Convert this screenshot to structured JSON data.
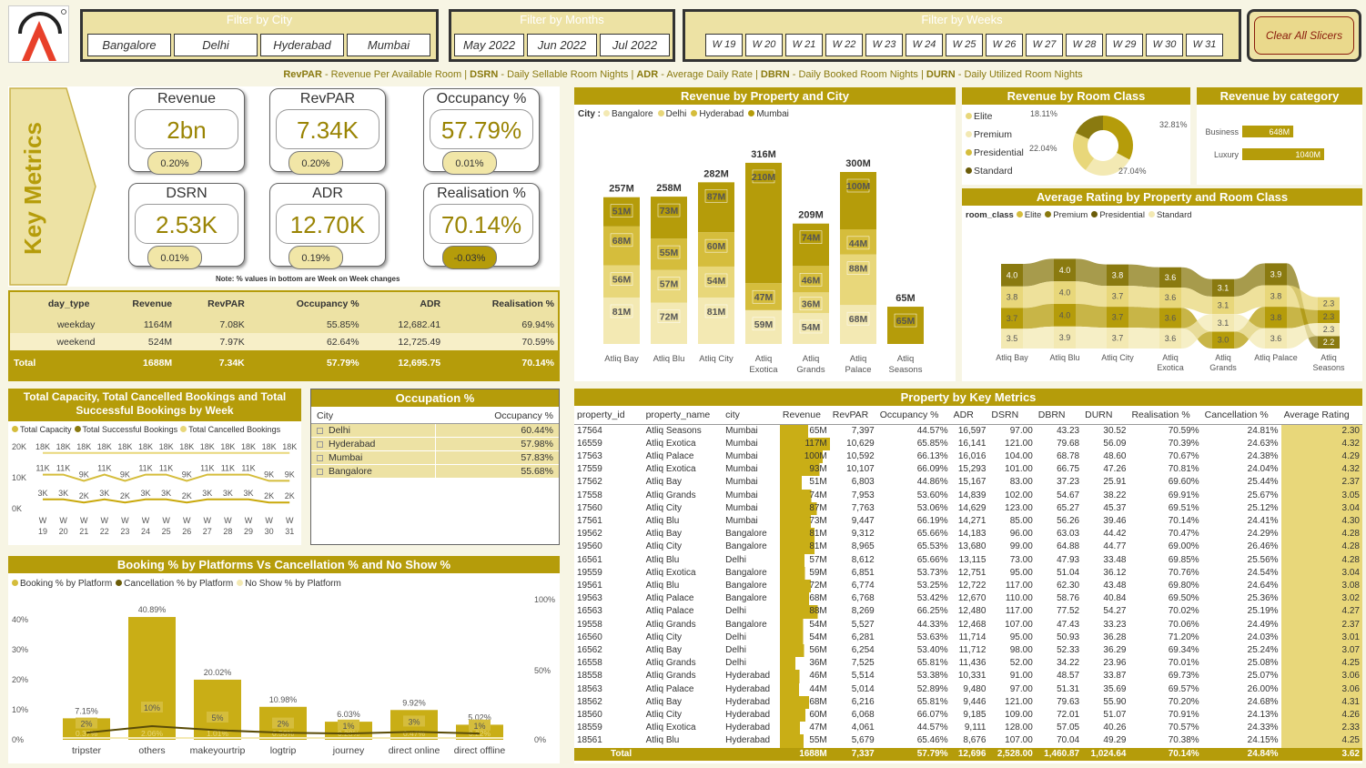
{
  "filters": {
    "city": {
      "title": "Filter by City",
      "options": [
        "Bangalore",
        "Delhi",
        "Hyderabad",
        "Mumbai"
      ]
    },
    "months": {
      "title": "Filter by Months",
      "options": [
        "May 2022",
        "Jun 2022",
        "Jul 2022"
      ]
    },
    "weeks": {
      "title": "Filter by Weeks",
      "options": [
        "W 19",
        "W 20",
        "W 21",
        "W 22",
        "W 23",
        "W 24",
        "W 25",
        "W 26",
        "W 27",
        "W 28",
        "W 29",
        "W 30",
        "W 31"
      ]
    },
    "clear": "Clear All Slicers"
  },
  "glossary": {
    "p1b": "RevPAR",
    "p1": " - Revenue Per Available Room | ",
    "p2b": "DSRN",
    "p2": " - Daily Sellable Room Nights | ",
    "p3b": "ADR",
    "p3": " - Average Daily Rate | ",
    "p4b": "DBRN",
    "p4": " - Daily Booked Room Nights | ",
    "p5b": "DURN",
    "p5": " - Daily Utilized Room Nights"
  },
  "key_metrics": {
    "label": "Key Metrics",
    "note": "Note: % values in bottom are Week on Week changes",
    "cards": [
      {
        "title": "Revenue",
        "value": "2bn",
        "change": "0.20%"
      },
      {
        "title": "RevPAR",
        "value": "7.34K",
        "change": "0.20%"
      },
      {
        "title": "Occupancy %",
        "value": "57.79%",
        "change": "0.01%"
      },
      {
        "title": "DSRN",
        "value": "2.53K",
        "change": "0.01%"
      },
      {
        "title": "ADR",
        "value": "12.70K",
        "change": "0.19%"
      },
      {
        "title": "Realisation %",
        "value": "70.14%",
        "change": "-0.03%"
      }
    ]
  },
  "daytype_table": {
    "headers": [
      "day_type",
      "Revenue",
      "RevPAR",
      "Occupancy %",
      "ADR",
      "Realisation %"
    ],
    "rows": [
      [
        "weekday",
        "1164M",
        "7.08K",
        "55.85%",
        "12,682.41",
        "69.94%"
      ],
      [
        "weekend",
        "524M",
        "7.97K",
        "62.64%",
        "12,725.49",
        "70.59%"
      ]
    ],
    "total": [
      "Total",
      "1688M",
      "7.34K",
      "57.79%",
      "12,695.75",
      "70.14%"
    ]
  },
  "rev_prop_city": {
    "title": "Revenue by Property and City",
    "legend_label": "City :",
    "cities": [
      "Bangalore",
      "Delhi",
      "Hyderabad",
      "Mumbai"
    ],
    "colors": {
      "Bangalore": "#f3e9b3",
      "Delhi": "#e8d77a",
      "Hyderabad": "#d5bd3c",
      "Mumbai": "#b59c0a"
    },
    "properties": [
      {
        "name": "Atliq Bay",
        "total": "257M",
        "segs": [
          [
            "Bangalore",
            81,
            "81M"
          ],
          [
            "Delhi",
            56,
            "56M"
          ],
          [
            "Hyderabad",
            68,
            "68M"
          ],
          [
            "Mumbai",
            51,
            "51M"
          ]
        ]
      },
      {
        "name": "Atliq Blu",
        "total": "258M",
        "segs": [
          [
            "Bangalore",
            72,
            "72M"
          ],
          [
            "Delhi",
            57,
            "57M"
          ],
          [
            "Hyderabad",
            55,
            "55M"
          ],
          [
            "Mumbai",
            73,
            "73M"
          ]
        ]
      },
      {
        "name": "Atliq City",
        "total": "282M",
        "segs": [
          [
            "Bangalore",
            81,
            "81M"
          ],
          [
            "Delhi",
            54,
            "54M"
          ],
          [
            "Hyderabad",
            60,
            "60M"
          ],
          [
            "Mumbai",
            87,
            "87M"
          ]
        ]
      },
      {
        "name": "Atliq Exotica",
        "total": "316M",
        "segs": [
          [
            "Bangalore",
            59,
            "59M"
          ],
          [
            "Hyderabad",
            47,
            "47M"
          ],
          [
            "Mumbai",
            210,
            "210M"
          ]
        ]
      },
      {
        "name": "Atliq Grands",
        "total": "209M",
        "segs": [
          [
            "Bangalore",
            54,
            "54M"
          ],
          [
            "Delhi",
            36,
            "36M"
          ],
          [
            "Hyderabad",
            46,
            "46M"
          ],
          [
            "Mumbai",
            74,
            "74M"
          ]
        ]
      },
      {
        "name": "Atliq Palace",
        "total": "300M",
        "segs": [
          [
            "Bangalore",
            68,
            "68M"
          ],
          [
            "Delhi",
            88,
            "88M"
          ],
          [
            "Hyderabad",
            44,
            "44M"
          ],
          [
            "Mumbai",
            100,
            "100M"
          ]
        ]
      },
      {
        "name": "Atliq Seasons",
        "total": "65M",
        "segs": [
          [
            "Mumbai",
            65,
            "65M"
          ]
        ]
      }
    ]
  },
  "rev_room_class": {
    "title": "Revenue by Room Class",
    "legend": [
      "Elite",
      "Premium",
      "Presidential",
      "Standard"
    ],
    "slices": [
      {
        "name": "Elite",
        "value": 32.81,
        "label": "32.81%",
        "color": "#b59c0a"
      },
      {
        "name": "Premium",
        "value": 27.04,
        "label": "27.04%",
        "color": "#f3e9b3"
      },
      {
        "name": "Presidential",
        "value": 22.04,
        "label": "22.04%",
        "color": "#e8d77a"
      },
      {
        "name": "Standard",
        "value": 18.11,
        "label": "18.11%",
        "color": "#8a7a10"
      }
    ]
  },
  "rev_category": {
    "title": "Revenue by category",
    "items": [
      {
        "name": "Business",
        "value": 648,
        "label": "648M"
      },
      {
        "name": "Luxury",
        "value": 1040,
        "label": "1040M"
      }
    ]
  },
  "avg_rating": {
    "title": "Average Rating by Property and Room Class",
    "legend_label": "room_class",
    "classes": [
      "Elite",
      "Premium",
      "Presidential",
      "Standard"
    ],
    "colors": {
      "Elite": "#d5bd3c",
      "Premium": "#8a7a10",
      "Presidential": "#6b5c08",
      "Standard": "#f3e9b3"
    },
    "properties": [
      "Atliq Bay",
      "Atliq Blu",
      "Atliq City",
      "Atliq Exotica",
      "Atliq Grands",
      "Atliq Palace",
      "Atliq Seasons"
    ],
    "ratings": {
      "Presidential": [
        4.0,
        4.0,
        3.8,
        3.6,
        3.1,
        3.9,
        2.2
      ],
      "Elite": [
        3.8,
        4.0,
        3.7,
        3.6,
        3.1,
        3.8,
        2.3
      ],
      "Premium": [
        3.7,
        4.0,
        3.7,
        3.6,
        3.0,
        3.8,
        2.3
      ],
      "Standard": [
        3.5,
        3.9,
        3.7,
        3.6,
        3.1,
        3.6,
        2.3
      ]
    }
  },
  "capacity_chart": {
    "title": "Total Capacity, Total Cancelled Bookings and Total Successful Bookings by Week",
    "legend": [
      "Total Capacity",
      "Total Successful Bookings",
      "Total Cancelled Bookings"
    ],
    "weeks": [
      "W 19",
      "W 20",
      "W 21",
      "W 22",
      "W 23",
      "W 24",
      "W 25",
      "W 26",
      "W 27",
      "W 28",
      "W 29",
      "W 30",
      "W 31"
    ],
    "yticks": [
      "20K",
      "10K",
      "0K"
    ],
    "capacity": [
      18,
      18,
      18,
      18,
      18,
      18,
      18,
      18,
      18,
      18,
      18,
      18,
      18
    ],
    "capacity_labels": [
      "18K",
      "18K",
      "18K",
      "18K",
      "18K",
      "18K",
      "18K",
      "18K",
      "18K",
      "18K",
      "18K",
      "18K",
      "18K"
    ],
    "successful": [
      11,
      11,
      9,
      11,
      9,
      11,
      11,
      9,
      11,
      11,
      11,
      9,
      9
    ],
    "successful_labels": [
      "11K",
      "11K",
      "9K",
      "11K",
      "9K",
      "11K",
      "11K",
      "9K",
      "11K",
      "11K",
      "11K",
      "9K",
      "9K"
    ],
    "cancelled": [
      3,
      3,
      2,
      3,
      2,
      3,
      3,
      2,
      3,
      3,
      3,
      2,
      2
    ],
    "cancelled_labels": [
      "3K",
      "3K",
      "2K",
      "3K",
      "2K",
      "3K",
      "3K",
      "2K",
      "3K",
      "3K",
      "3K",
      "2K",
      "2K"
    ]
  },
  "occupation": {
    "title": "Occupation %",
    "headers": [
      "City",
      "Occupancy %"
    ],
    "rows": [
      [
        "Delhi",
        "60.44%"
      ],
      [
        "Hyderabad",
        "57.98%"
      ],
      [
        "Mumbai",
        "57.83%"
      ],
      [
        "Bangalore",
        "55.68%"
      ]
    ]
  },
  "booking_platform": {
    "title": "Booking % by Platforms Vs Cancellation % and No Show %",
    "legend": [
      "Booking % by Platform",
      "Cancellation % by Platform",
      "No Show % by Platform"
    ],
    "yticks": [
      "40%",
      "30%",
      "20%",
      "10%",
      "0%"
    ],
    "y2ticks": [
      "100%",
      "50%",
      "0%"
    ],
    "platforms": [
      "tripster",
      "others",
      "makeyourtrip",
      "logtrip",
      "journey",
      "direct online",
      "direct offline"
    ],
    "booking": [
      7.15,
      40.89,
      20.02,
      10.98,
      6.03,
      9.92,
      5.02
    ],
    "booking_labels": [
      "7.15%",
      "40.89%",
      "20.02%",
      "10.98%",
      "6.03%",
      "9.92%",
      "5.02%"
    ],
    "cancellation": [
      2,
      10,
      5,
      2,
      1,
      3,
      1
    ],
    "cancellation_labels": [
      "2%",
      "10%",
      "5%",
      "2%",
      "1%",
      "3%",
      "1%"
    ],
    "noshow_labels": [
      "0.37%",
      "2.06%",
      "1.01%",
      "0.56%",
      "0.28%",
      "0.47%",
      "0.22%"
    ]
  },
  "property_table": {
    "title": "Property by Key Metrics",
    "headers": [
      "property_id",
      "property_name",
      "city",
      "Revenue",
      "RevPAR",
      "Occupancy %",
      "ADR",
      "DSRN",
      "DBRN",
      "DURN",
      "Realisation %",
      "Cancellation %",
      "Average Rating"
    ],
    "rows": [
      [
        "17564",
        "Atliq Seasons",
        "Mumbai",
        "65M",
        "7,397",
        "44.57%",
        "16,597",
        "97.00",
        "43.23",
        "30.52",
        "70.59%",
        "24.81%",
        "2.30"
      ],
      [
        "16559",
        "Atliq Exotica",
        "Mumbai",
        "117M",
        "10,629",
        "65.85%",
        "16,141",
        "121.00",
        "79.68",
        "56.09",
        "70.39%",
        "24.63%",
        "4.32"
      ],
      [
        "17563",
        "Atliq Palace",
        "Mumbai",
        "100M",
        "10,592",
        "66.13%",
        "16,016",
        "104.00",
        "68.78",
        "48.60",
        "70.67%",
        "24.38%",
        "4.29"
      ],
      [
        "17559",
        "Atliq Exotica",
        "Mumbai",
        "93M",
        "10,107",
        "66.09%",
        "15,293",
        "101.00",
        "66.75",
        "47.26",
        "70.81%",
        "24.04%",
        "4.32"
      ],
      [
        "17562",
        "Atliq Bay",
        "Mumbai",
        "51M",
        "6,803",
        "44.86%",
        "15,167",
        "83.00",
        "37.23",
        "25.91",
        "69.60%",
        "25.44%",
        "2.37"
      ],
      [
        "17558",
        "Atliq Grands",
        "Mumbai",
        "74M",
        "7,953",
        "53.60%",
        "14,839",
        "102.00",
        "54.67",
        "38.22",
        "69.91%",
        "25.67%",
        "3.05"
      ],
      [
        "17560",
        "Atliq City",
        "Mumbai",
        "87M",
        "7,763",
        "53.06%",
        "14,629",
        "123.00",
        "65.27",
        "45.37",
        "69.51%",
        "25.12%",
        "3.04"
      ],
      [
        "17561",
        "Atliq Blu",
        "Mumbai",
        "73M",
        "9,447",
        "66.19%",
        "14,271",
        "85.00",
        "56.26",
        "39.46",
        "70.14%",
        "24.41%",
        "4.30"
      ],
      [
        "19562",
        "Atliq Bay",
        "Bangalore",
        "81M",
        "9,312",
        "65.66%",
        "14,183",
        "96.00",
        "63.03",
        "44.42",
        "70.47%",
        "24.29%",
        "4.28"
      ],
      [
        "19560",
        "Atliq City",
        "Bangalore",
        "81M",
        "8,965",
        "65.53%",
        "13,680",
        "99.00",
        "64.88",
        "44.77",
        "69.00%",
        "26.46%",
        "4.28"
      ],
      [
        "16561",
        "Atliq Blu",
        "Delhi",
        "57M",
        "8,612",
        "65.66%",
        "13,115",
        "73.00",
        "47.93",
        "33.48",
        "69.85%",
        "25.56%",
        "4.28"
      ],
      [
        "19559",
        "Atliq Exotica",
        "Bangalore",
        "59M",
        "6,851",
        "53.73%",
        "12,751",
        "95.00",
        "51.04",
        "36.12",
        "70.76%",
        "24.54%",
        "3.04"
      ],
      [
        "19561",
        "Atliq Blu",
        "Bangalore",
        "72M",
        "6,774",
        "53.25%",
        "12,722",
        "117.00",
        "62.30",
        "43.48",
        "69.80%",
        "24.64%",
        "3.08"
      ],
      [
        "19563",
        "Atliq Palace",
        "Bangalore",
        "68M",
        "6,768",
        "53.42%",
        "12,670",
        "110.00",
        "58.76",
        "40.84",
        "69.50%",
        "25.36%",
        "3.02"
      ],
      [
        "16563",
        "Atliq Palace",
        "Delhi",
        "88M",
        "8,269",
        "66.25%",
        "12,480",
        "117.00",
        "77.52",
        "54.27",
        "70.02%",
        "25.19%",
        "4.27"
      ],
      [
        "19558",
        "Atliq Grands",
        "Bangalore",
        "54M",
        "5,527",
        "44.33%",
        "12,468",
        "107.00",
        "47.43",
        "33.23",
        "70.06%",
        "24.49%",
        "2.37"
      ],
      [
        "16560",
        "Atliq City",
        "Delhi",
        "54M",
        "6,281",
        "53.63%",
        "11,714",
        "95.00",
        "50.93",
        "36.28",
        "71.20%",
        "24.03%",
        "3.01"
      ],
      [
        "16562",
        "Atliq Bay",
        "Delhi",
        "56M",
        "6,254",
        "53.40%",
        "11,712",
        "98.00",
        "52.33",
        "36.29",
        "69.34%",
        "25.24%",
        "3.07"
      ],
      [
        "16558",
        "Atliq Grands",
        "Delhi",
        "36M",
        "7,525",
        "65.81%",
        "11,436",
        "52.00",
        "34.22",
        "23.96",
        "70.01%",
        "25.08%",
        "4.25"
      ],
      [
        "18558",
        "Atliq Grands",
        "Hyderabad",
        "46M",
        "5,514",
        "53.38%",
        "10,331",
        "91.00",
        "48.57",
        "33.87",
        "69.73%",
        "25.07%",
        "3.06"
      ],
      [
        "18563",
        "Atliq Palace",
        "Hyderabad",
        "44M",
        "5,014",
        "52.89%",
        "9,480",
        "97.00",
        "51.31",
        "35.69",
        "69.57%",
        "26.00%",
        "3.06"
      ],
      [
        "18562",
        "Atliq Bay",
        "Hyderabad",
        "68M",
        "6,216",
        "65.81%",
        "9,446",
        "121.00",
        "79.63",
        "55.90",
        "70.20%",
        "24.68%",
        "4.31"
      ],
      [
        "18560",
        "Atliq City",
        "Hyderabad",
        "60M",
        "6,068",
        "66.07%",
        "9,185",
        "109.00",
        "72.01",
        "51.07",
        "70.91%",
        "24.13%",
        "4.26"
      ],
      [
        "18559",
        "Atliq Exotica",
        "Hyderabad",
        "47M",
        "4,061",
        "44.57%",
        "9,111",
        "128.00",
        "57.05",
        "40.26",
        "70.57%",
        "24.33%",
        "2.33"
      ],
      [
        "18561",
        "Atliq Blu",
        "Hyderabad",
        "55M",
        "5,679",
        "65.46%",
        "8,676",
        "107.00",
        "70.04",
        "49.29",
        "70.38%",
        "24.15%",
        "4.25"
      ]
    ],
    "total": [
      "Total",
      "",
      "",
      "1688M",
      "7,337",
      "57.79%",
      "12,696",
      "2,528.00",
      "1,460.87",
      "1,024.64",
      "70.14%",
      "24.84%",
      "3.62"
    ]
  }
}
